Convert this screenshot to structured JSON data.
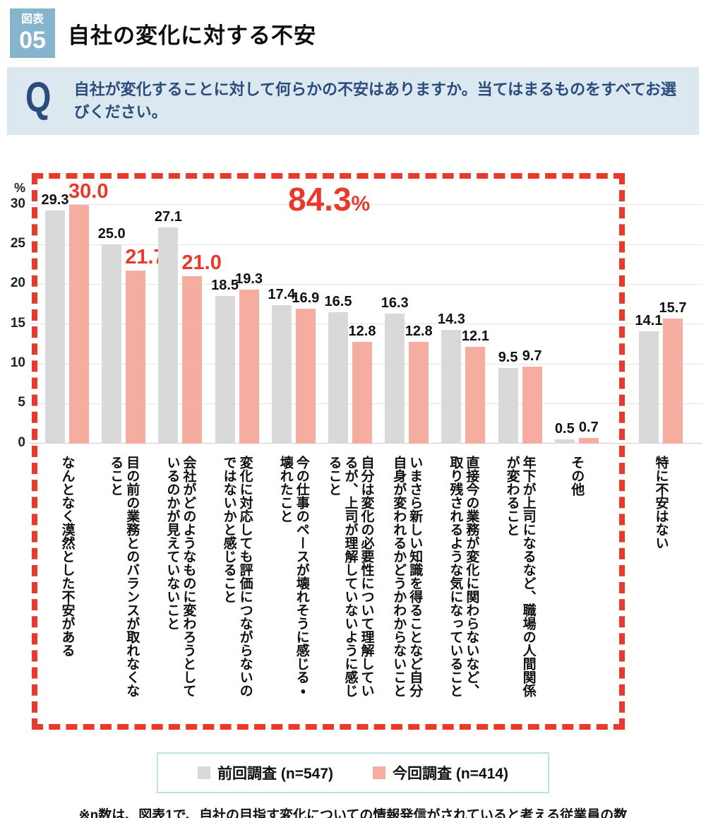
{
  "header": {
    "badge_top": "図表",
    "badge_number": "05",
    "title": "自社の変化に対する不安"
  },
  "question": {
    "marker": "Q",
    "text": "自社が変化することに対して何らかの不安はありますか。当てはまるものをすべてお選びください。"
  },
  "colors": {
    "accent_red": "#e8392b",
    "bar_previous": "#d9d9d9",
    "bar_current": "#f4ad9e",
    "badge_blue": "#87b4cd",
    "question_bg": "#dbe8f0",
    "question_text": "#2a4b7c",
    "legend_border": "#bfdfe9",
    "gridline": "#e3e3e3"
  },
  "chart_data": {
    "type": "bar",
    "title": "自社の変化に対する不安",
    "ylabel": "%",
    "ylim": [
      0,
      30
    ],
    "yticks": [
      0,
      5,
      10,
      15,
      20,
      25,
      30
    ],
    "grid": true,
    "legend_position": "bottom",
    "annotation_value": "84.3",
    "annotation_unit": "%",
    "boxed_category_count": 10,
    "highlighted_current_indexes": [
      0,
      1,
      2
    ],
    "categories": [
      "なんとなく漠然とした不安がある",
      "目の前の業務とのバランスが取れなくなること",
      "会社がどのようなものに変わろうとしているのかが見えていないこと",
      "変化に対応しても評価につながらないのではないかと感じること",
      "今の仕事のペースが壊れそうに感じる・壊れたこと",
      "自分は変化の必要性について理解しているが、上司が理解していないように感じること",
      "いまさら新しい知識を得ることなど自分自身が変われるかどうかわからないこと",
      "直接今の業務が変化に関わらないなど、取り残されるような気になっていること",
      "年下が上司になるなど、職場の人間関係が変わること",
      "その他",
      "特に不安はない"
    ],
    "series": [
      {
        "name": "前回調査 (n=547)",
        "color": "#d9d9d9",
        "values": [
          "29.3",
          "25.0",
          "27.1",
          "18.5",
          "17.4",
          "16.5",
          "16.3",
          "14.3",
          "9.5",
          "0.5",
          "14.1"
        ]
      },
      {
        "name": "今回調査 (n=414)",
        "color": "#f4ad9e",
        "values": [
          "30.0",
          "21.7",
          "21.0",
          "19.3",
          "16.9",
          "12.8",
          "12.8",
          "12.1",
          "9.7",
          "0.7",
          "15.7"
        ]
      }
    ]
  },
  "legend": {
    "items": [
      {
        "label": "前回調査 (n=547)",
        "color": "#d9d9d9"
      },
      {
        "label": "今回調査 (n=414)",
        "color": "#f4ad9e"
      }
    ]
  },
  "footnote": "※n数は、図表1で、自社の目指す変化についての情報発信がされていると考える従業員の数"
}
